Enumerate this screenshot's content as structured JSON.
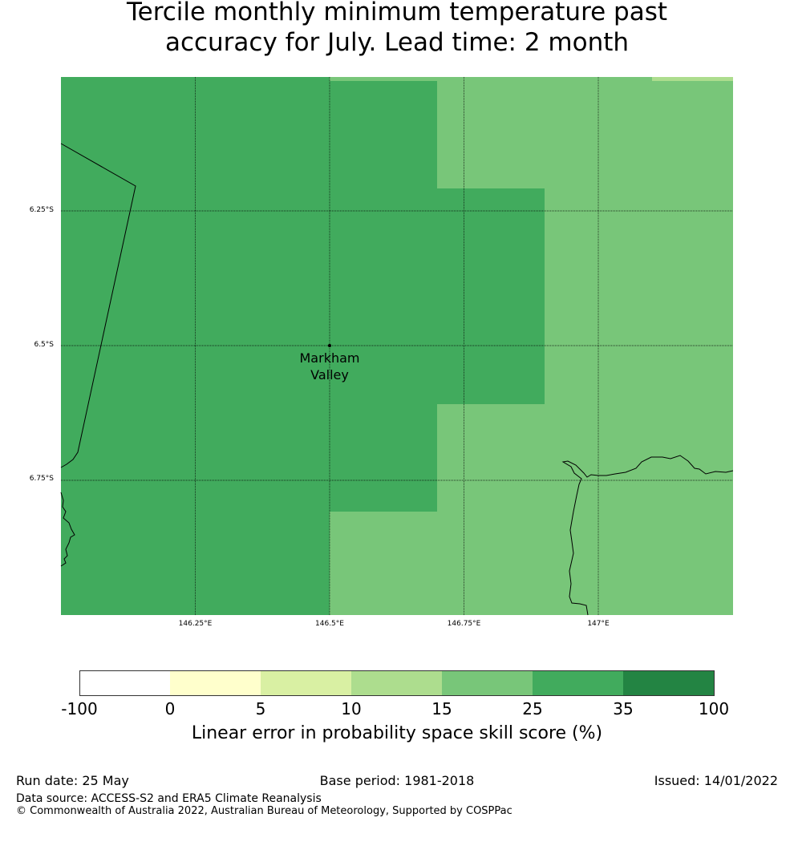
{
  "title": {
    "line1": "Tercile monthly minimum temperature past",
    "line2": "accuracy for July. Lead time: 2 month"
  },
  "map": {
    "lon_ticks": [
      "146.25°E",
      "146.5°E",
      "146.75°E",
      "147°E"
    ],
    "lat_ticks": [
      "6.25°S",
      "6.5°S",
      "6.75°S"
    ],
    "place": {
      "line1": "Markham",
      "line2": "Valley"
    },
    "colors": {
      "class_25_35": "#41ab5d",
      "class_15_25": "#78c679",
      "class_10_15": "#addd8e"
    }
  },
  "colorbar": {
    "labels": [
      "-100",
      "0",
      "5",
      "10",
      "15",
      "25",
      "35",
      "100"
    ],
    "colors": [
      "#ffffff",
      "#ffffcc",
      "#d9f0a3",
      "#addd8e",
      "#78c679",
      "#41ab5d",
      "#238443"
    ],
    "title": "Linear error in probability space skill score (%)"
  },
  "footer": {
    "run_date": "Run date: 25 May",
    "base_period": "Base period: 1981-2018",
    "issued": "Issued: 14/01/2022",
    "data_source": "Data source: ACCESS-S2 and ERA5 Climate Reanalysis",
    "copyright": "© Commonwealth of Australia 2022, Australian Bureau of Meteorology, Supported by COSPPac"
  }
}
